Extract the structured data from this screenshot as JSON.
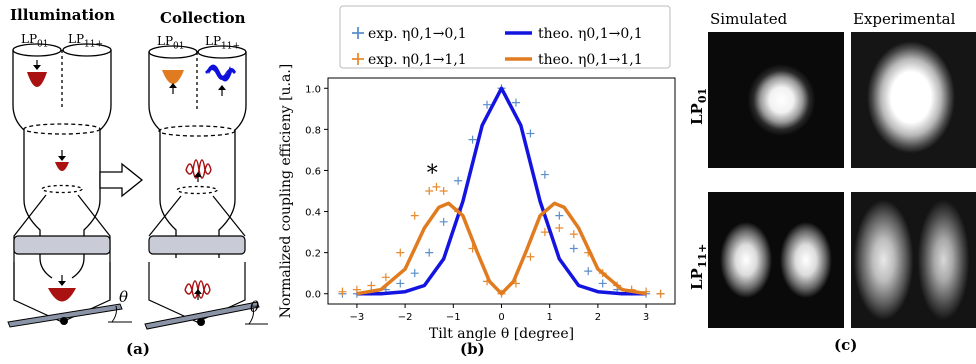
{
  "panel_a": {
    "illumination_title": "Illumination",
    "collection_title": "Collection",
    "mode_labels": [
      "LP01",
      "LP11+"
    ],
    "theta_label": "θ",
    "caption": "(a)",
    "colors": {
      "red_mode": "#aa1111",
      "orange_mode": "#e07b1f",
      "blue_mode": "#1010dd",
      "lens": "#c9ccd6"
    }
  },
  "panel_b": {
    "caption": "(b)",
    "legend": {
      "exp_00": "exp.  η0,1→0,1",
      "exp_11": "exp.  η0,1→1,1",
      "theo_00": "theo.  η0,1→0,1",
      "theo_11": "theo.  η0,1→1,1"
    },
    "annotation": "*"
  },
  "chart_data": {
    "type": "line",
    "xlabel": "Tilt angle θ [degree]",
    "ylabel": "Normalized coupling efficieny [u.a.]",
    "xlim": [
      -3.6,
      3.6
    ],
    "ylim": [
      -0.05,
      1.05
    ],
    "xticks": [
      -3,
      -2,
      -1,
      0,
      1,
      2,
      3
    ],
    "yticks": [
      0.0,
      0.2,
      0.4,
      0.6,
      0.8,
      1.0
    ],
    "grid": true,
    "legend_position": "top",
    "series": [
      {
        "name": "exp. η0,1→0,1",
        "kind": "exp",
        "color": "#5b8fc9",
        "x": [
          -3.3,
          -3.0,
          -2.7,
          -2.4,
          -2.1,
          -1.8,
          -1.5,
          -1.2,
          -0.9,
          -0.6,
          -0.3,
          0.0,
          0.3,
          0.6,
          0.9,
          1.2,
          1.5,
          1.8,
          2.1,
          2.4,
          2.7,
          3.0,
          3.3
        ],
        "y": [
          0.0,
          0.0,
          0.01,
          0.02,
          0.05,
          0.1,
          0.2,
          0.35,
          0.55,
          0.75,
          0.92,
          1.0,
          0.93,
          0.78,
          0.58,
          0.38,
          0.22,
          0.11,
          0.05,
          0.02,
          0.01,
          0.0,
          0.0
        ]
      },
      {
        "name": "exp. η0,1→1,1",
        "kind": "exp",
        "color": "#e88a2e",
        "x": [
          -3.3,
          -3.0,
          -2.7,
          -2.4,
          -2.1,
          -1.8,
          -1.5,
          -1.35,
          -1.2,
          -0.9,
          -0.6,
          -0.3,
          0.0,
          0.3,
          0.6,
          0.9,
          1.2,
          1.5,
          1.8,
          2.1,
          2.4,
          2.7,
          3.0,
          3.3
        ],
        "y": [
          0.01,
          0.02,
          0.04,
          0.08,
          0.2,
          0.38,
          0.5,
          0.52,
          0.5,
          0.4,
          0.22,
          0.06,
          0.0,
          0.05,
          0.18,
          0.3,
          0.32,
          0.29,
          0.2,
          0.1,
          0.04,
          0.02,
          0.01,
          0.0
        ]
      },
      {
        "name": "theo. η0,1→0,1",
        "kind": "theo",
        "color": "#1414e0",
        "x": [
          -3.0,
          -2.5,
          -2.0,
          -1.6,
          -1.2,
          -0.8,
          -0.4,
          0.0,
          0.4,
          0.8,
          1.2,
          1.6,
          2.0,
          2.5,
          3.0
        ],
        "y": [
          0.0,
          0.0,
          0.01,
          0.04,
          0.17,
          0.45,
          0.82,
          1.0,
          0.82,
          0.45,
          0.17,
          0.04,
          0.01,
          0.0,
          0.0
        ]
      },
      {
        "name": "theo. η0,1→1,1",
        "kind": "theo",
        "color": "#e07b1f",
        "x": [
          -3.0,
          -2.5,
          -2.0,
          -1.6,
          -1.3,
          -1.1,
          -0.8,
          -0.5,
          -0.25,
          0.0,
          0.25,
          0.5,
          0.8,
          1.1,
          1.3,
          1.6,
          2.0,
          2.5,
          3.0
        ],
        "y": [
          0.0,
          0.02,
          0.12,
          0.32,
          0.42,
          0.44,
          0.38,
          0.2,
          0.06,
          0.0,
          0.06,
          0.2,
          0.38,
          0.44,
          0.42,
          0.32,
          0.12,
          0.02,
          0.0
        ]
      }
    ]
  },
  "panel_c": {
    "simulated_label": "Simulated",
    "experimental_label": "Experimental",
    "row1_label": "LP01",
    "row2_label": "LP11+",
    "caption": "(c)"
  }
}
